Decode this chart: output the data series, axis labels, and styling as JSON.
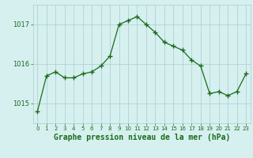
{
  "hours": [
    0,
    1,
    2,
    3,
    4,
    5,
    6,
    7,
    8,
    9,
    10,
    11,
    12,
    13,
    14,
    15,
    16,
    17,
    18,
    19,
    20,
    21,
    22,
    23
  ],
  "pressure": [
    1014.8,
    1015.7,
    1015.8,
    1015.65,
    1015.65,
    1015.75,
    1015.8,
    1015.95,
    1016.2,
    1017.0,
    1017.1,
    1017.2,
    1017.0,
    1016.8,
    1016.55,
    1016.45,
    1016.35,
    1016.1,
    1015.95,
    1015.25,
    1015.3,
    1015.2,
    1015.3,
    1015.75
  ],
  "line_color": "#1a6b1a",
  "marker": "+",
  "marker_size": 4,
  "background_color": "#d6f0f0",
  "grid_color": "#aacccc",
  "xlabel": "Graphe pression niveau de la mer (hPa)",
  "xlabel_color": "#1a6b1a",
  "tick_label_color": "#1a6b1a",
  "ylim": [
    1014.5,
    1017.5
  ],
  "yticks": [
    1015,
    1016,
    1017
  ],
  "tick_fontsize": 6,
  "xlabel_fontsize": 7
}
